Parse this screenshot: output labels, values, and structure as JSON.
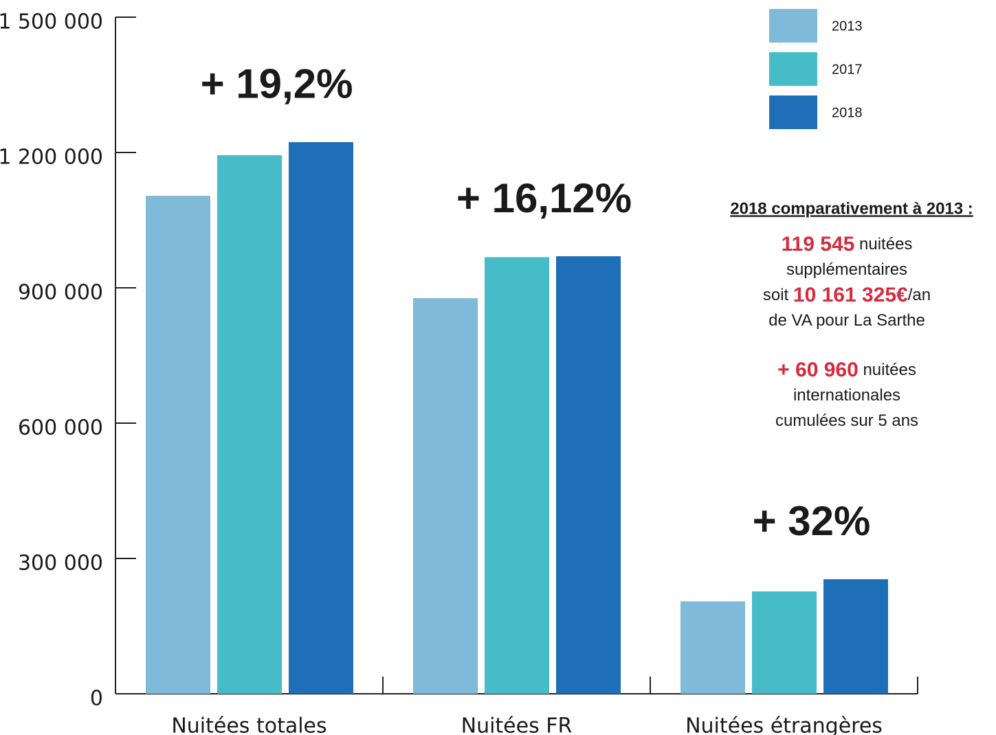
{
  "chart_data": {
    "type": "bar",
    "categories": [
      "Nuitées totales",
      "Nuitées FR",
      "Nuitées étrangères"
    ],
    "series": [
      {
        "name": "2013",
        "color": "#7fbad8",
        "values": [
          1104000,
          877000,
          205000
        ]
      },
      {
        "name": "2017",
        "color": "#45bcc8",
        "values": [
          1194000,
          968000,
          227000
        ]
      },
      {
        "name": "2018",
        "color": "#1f6fb8",
        "values": [
          1223000,
          970000,
          254000
        ]
      }
    ],
    "ylim": [
      0,
      1500000
    ],
    "yticks": [
      0,
      {
        "value": 300000,
        "label": "300 000"
      },
      {
        "value": 600000,
        "label": "600 000"
      },
      {
        "value": 900000,
        "label": "900 000"
      },
      {
        "value": 1200000,
        "label": "1 200 000"
      },
      {
        "value": 1500000,
        "label": "1 500 000"
      }
    ],
    "annotations": [
      "+ 19,2%",
      "+ 16,12%",
      "+ 32%"
    ],
    "annotation_color": "#d62b3c",
    "legend": "upper right",
    "summary": {
      "title": "2018 comparativement à 2013 :",
      "paragraphs": [
        [
          [
            {
              "text": "119 545",
              "highlight": true
            },
            {
              "text": " nuitées"
            }
          ],
          [
            {
              "text": "supplémentaires"
            }
          ],
          [
            {
              "text": "soit "
            },
            {
              "text": "10 161 325€",
              "highlight": true
            },
            {
              "text": "/an"
            }
          ],
          [
            {
              "text": "de VA pour La Sarthe"
            }
          ]
        ],
        [
          [
            {
              "text": "+ 60 960",
              "highlight": true
            },
            {
              "text": " nuitées"
            }
          ],
          [
            {
              "text": "internationales"
            }
          ],
          [
            {
              "text": "cumulées sur 5 ans"
            }
          ]
        ]
      ]
    }
  }
}
